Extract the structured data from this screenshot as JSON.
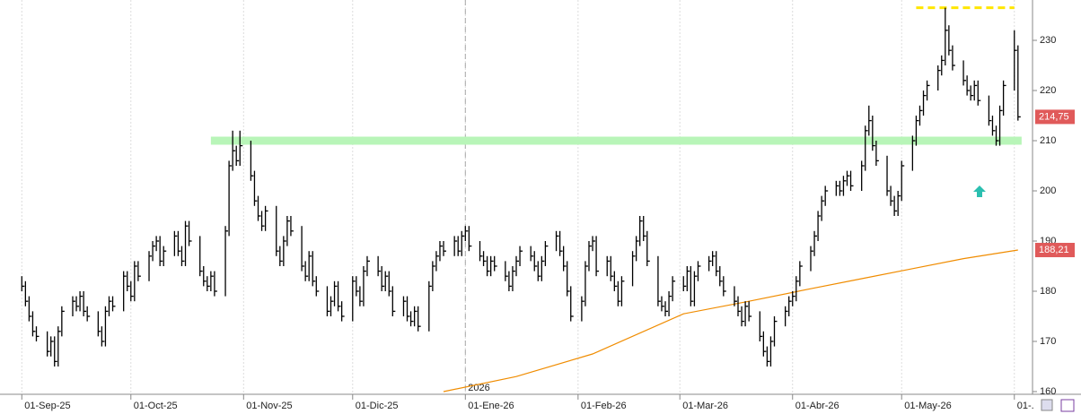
{
  "chart_data": {
    "type": "ohlc",
    "x": [
      "2025-09-01",
      "2025-09-02",
      "2025-09-03",
      "2025-09-04",
      "2025-09-05",
      "2025-09-08",
      "2025-09-09",
      "2025-09-10",
      "2025-09-11",
      "2025-09-12",
      "2025-09-15",
      "2025-09-16",
      "2025-09-17",
      "2025-09-18",
      "2025-09-19",
      "2025-09-22",
      "2025-09-23",
      "2025-09-24",
      "2025-09-25",
      "2025-09-26",
      "2025-09-29",
      "2025-09-30",
      "2025-10-01",
      "2025-10-02",
      "2025-10-03",
      "2025-10-06",
      "2025-10-07",
      "2025-10-08",
      "2025-10-09",
      "2025-10-10",
      "2025-10-13",
      "2025-10-14",
      "2025-10-15",
      "2025-10-16",
      "2025-10-17",
      "2025-10-20",
      "2025-10-21",
      "2025-10-22",
      "2025-10-23",
      "2025-10-24",
      "2025-10-27",
      "2025-10-28",
      "2025-10-29",
      "2025-10-30",
      "2025-10-31",
      "2025-11-03",
      "2025-11-04",
      "2025-11-05",
      "2025-11-06",
      "2025-11-07",
      "2025-11-10",
      "2025-11-11",
      "2025-11-12",
      "2025-11-13",
      "2025-11-14",
      "2025-11-17",
      "2025-11-18",
      "2025-11-19",
      "2025-11-20",
      "2025-11-21",
      "2025-11-24",
      "2025-11-25",
      "2025-11-26",
      "2025-11-27",
      "2025-11-28",
      "2025-12-01",
      "2025-12-02",
      "2025-12-03",
      "2025-12-04",
      "2025-12-05",
      "2025-12-08",
      "2025-12-09",
      "2025-12-10",
      "2025-12-11",
      "2025-12-12",
      "2025-12-15",
      "2025-12-16",
      "2025-12-17",
      "2025-12-18",
      "2025-12-19",
      "2025-12-22",
      "2025-12-23",
      "2025-12-24",
      "2025-12-25",
      "2025-12-26",
      "2025-12-29",
      "2025-12-30",
      "2025-12-31",
      "2026-01-01",
      "2026-01-02",
      "2026-01-05",
      "2026-01-06",
      "2026-01-07",
      "2026-01-08",
      "2026-01-09",
      "2026-01-12",
      "2026-01-13",
      "2026-01-14",
      "2026-01-15",
      "2026-01-16",
      "2026-01-19",
      "2026-01-20",
      "2026-01-21",
      "2026-01-22",
      "2026-01-23",
      "2026-01-26",
      "2026-01-27",
      "2026-01-28",
      "2026-01-29",
      "2026-01-30",
      "2026-02-02",
      "2026-02-03",
      "2026-02-04",
      "2026-02-05",
      "2026-02-06",
      "2026-02-09",
      "2026-02-10",
      "2026-02-11",
      "2026-02-12",
      "2026-02-13",
      "2026-02-16",
      "2026-02-17",
      "2026-02-18",
      "2026-02-19",
      "2026-02-20",
      "2026-02-23",
      "2026-02-24",
      "2026-02-25",
      "2026-02-26",
      "2026-02-27",
      "2026-03-02",
      "2026-03-03",
      "2026-03-04",
      "2026-03-05",
      "2026-03-06",
      "2026-03-09",
      "2026-03-10",
      "2026-03-11",
      "2026-03-12",
      "2026-03-13",
      "2026-03-16",
      "2026-03-17",
      "2026-03-18",
      "2026-03-19",
      "2026-03-20",
      "2026-03-23",
      "2026-03-24",
      "2026-03-25",
      "2026-03-26",
      "2026-03-27",
      "2026-03-30",
      "2026-03-31",
      "2026-04-01",
      "2026-04-02",
      "2026-04-03",
      "2026-04-06",
      "2026-04-07",
      "2026-04-08",
      "2026-04-09",
      "2026-04-10",
      "2026-04-13",
      "2026-04-14",
      "2026-04-15",
      "2026-04-16",
      "2026-04-17",
      "2026-04-20",
      "2026-04-21",
      "2026-04-22",
      "2026-04-23",
      "2026-04-24",
      "2026-04-27",
      "2026-04-28",
      "2026-04-29",
      "2026-04-30",
      "2026-05-01",
      "2026-05-04",
      "2026-05-05",
      "2026-05-06",
      "2026-05-07",
      "2026-05-08",
      "2026-05-11",
      "2026-05-12",
      "2026-05-13",
      "2026-05-14",
      "2026-05-15",
      "2026-05-18",
      "2026-05-19",
      "2026-05-20",
      "2026-05-21",
      "2026-05-22",
      "2026-05-25",
      "2026-05-26",
      "2026-05-27",
      "2026-05-28",
      "2026-05-29",
      "2026-06-01",
      "2026-06-02"
    ],
    "high": [
      183,
      182,
      179,
      176,
      173,
      172,
      171,
      171,
      173,
      177,
      179,
      179,
      180,
      180,
      177,
      176,
      173,
      177,
      179,
      179,
      184,
      184,
      182,
      186,
      186,
      188,
      190,
      191,
      191,
      189,
      192,
      192,
      189,
      194,
      194,
      191,
      185,
      183,
      184,
      184,
      193,
      206,
      212,
      209,
      212,
      210,
      204,
      199,
      196,
      197,
      197,
      189,
      191,
      195,
      195,
      193,
      186,
      188,
      188,
      183,
      181,
      179,
      182,
      182,
      178,
      183,
      183,
      181,
      185,
      187,
      187,
      185,
      184,
      184,
      181,
      179,
      179,
      176,
      177,
      177,
      182,
      186,
      188,
      190,
      190,
      191,
      191,
      192,
      193,
      193,
      190,
      188,
      187,
      187,
      187,
      186,
      184,
      185,
      187,
      189,
      189,
      188,
      186,
      187,
      190,
      192,
      192,
      189,
      186,
      181,
      179,
      186,
      190,
      191,
      191,
      187,
      187,
      184,
      182,
      183,
      188,
      191,
      195,
      195,
      192,
      187,
      179,
      178,
      180,
      183,
      183,
      185,
      185,
      184,
      186,
      187,
      188,
      188,
      185,
      183,
      181,
      179,
      177,
      178,
      178,
      176,
      172,
      169,
      171,
      175,
      177,
      179,
      180,
      183,
      186,
      189,
      192,
      196,
      199,
      201,
      202,
      202,
      203,
      204,
      204,
      206,
      213,
      217,
      215,
      210,
      207,
      201,
      199,
      200,
      206,
      211,
      215,
      217,
      220,
      222,
      225,
      227,
      236.5,
      233,
      229,
      226,
      223,
      221,
      222,
      222,
      219,
      215,
      213,
      217,
      222,
      232,
      229
    ],
    "low": [
      180,
      177,
      174,
      171,
      170,
      167,
      167,
      165,
      165,
      171,
      175,
      176,
      176,
      175,
      174,
      171,
      169,
      169,
      175,
      176,
      176,
      180,
      178,
      178,
      182,
      182,
      186,
      188,
      185,
      185,
      187,
      187,
      185,
      185,
      189,
      183,
      181,
      180,
      180,
      179,
      179,
      191,
      204,
      205,
      205,
      202,
      197,
      194,
      192,
      192,
      187,
      185,
      185,
      189,
      191,
      184,
      182,
      182,
      181,
      179,
      175,
      175,
      177,
      176,
      174,
      174,
      179,
      177,
      177,
      183,
      183,
      180,
      180,
      179,
      175,
      175,
      174,
      173,
      173,
      172,
      172,
      180,
      184,
      186,
      187,
      187,
      187,
      187,
      190,
      188,
      186,
      185,
      183,
      183,
      184,
      182,
      180,
      180,
      183,
      185,
      186,
      184,
      182,
      182,
      185,
      188,
      187,
      184,
      179,
      174,
      174,
      177,
      184,
      188,
      183,
      183,
      182,
      180,
      177,
      177,
      181,
      186,
      189,
      190,
      185,
      177,
      176,
      175,
      175,
      178,
      180,
      180,
      177,
      177,
      182,
      184,
      185,
      183,
      181,
      179,
      177,
      175,
      173,
      173,
      174,
      170,
      167,
      165,
      165,
      169,
      173,
      175,
      177,
      178,
      181,
      184,
      187,
      190,
      194,
      197,
      199,
      199,
      199,
      201,
      200,
      200,
      204,
      211,
      208,
      205,
      199,
      197,
      195,
      195,
      198,
      204,
      209,
      213,
      215,
      218,
      220,
      223,
      225,
      227,
      224,
      221,
      219,
      218,
      218,
      217,
      213,
      211,
      209,
      209,
      215,
      220,
      214
    ],
    "close": [
      181,
      178,
      175,
      172,
      171,
      168,
      170,
      166,
      172,
      176,
      178,
      177,
      179,
      176,
      175,
      172,
      170,
      176,
      178,
      177,
      183,
      181,
      179,
      185,
      183,
      187,
      189,
      190,
      186,
      188,
      191,
      188,
      186,
      193,
      190,
      184,
      182,
      181,
      183,
      180,
      192,
      205,
      208,
      206,
      209,
      203,
      198,
      195,
      193,
      196,
      188,
      186,
      190,
      194,
      192,
      185,
      183,
      187,
      182,
      180,
      176,
      178,
      181,
      177,
      175,
      182,
      180,
      178,
      184,
      186,
      184,
      181,
      183,
      180,
      176,
      178,
      175,
      174,
      176,
      173,
      181,
      185,
      187,
      189,
      188,
      190,
      188,
      191,
      192,
      189,
      187,
      186,
      184,
      186,
      185,
      183,
      181,
      184,
      186,
      188,
      187,
      185,
      183,
      186,
      189,
      191,
      188,
      185,
      180,
      175,
      178,
      185,
      189,
      190,
      184,
      186,
      183,
      181,
      178,
      182,
      187,
      190,
      194,
      191,
      186,
      178,
      177,
      176,
      179,
      182,
      181,
      184,
      178,
      183,
      185,
      186,
      187,
      184,
      182,
      180,
      178,
      176,
      174,
      177,
      175,
      171,
      168,
      166,
      170,
      174,
      176,
      178,
      179,
      182,
      185,
      188,
      191,
      195,
      198,
      200,
      201,
      200,
      202,
      203,
      201,
      205,
      212,
      214,
      209,
      206,
      200,
      198,
      196,
      199,
      205,
      210,
      214,
      216,
      219,
      221,
      224,
      226,
      232,
      228,
      225,
      222,
      220,
      219,
      221,
      218,
      214,
      212,
      210,
      216,
      221,
      228,
      214.75
    ],
    "last_label": "214,75",
    "color": "#000000",
    "xlim": [
      "2025-08-26",
      "2026-06-06"
    ],
    "xticks": [
      {
        "value": "2025-09-01",
        "label": "01-Sep-25"
      },
      {
        "value": "2025-10-01",
        "label": "01-Oct-25"
      },
      {
        "value": "2025-11-01",
        "label": "01-Nov-25"
      },
      {
        "value": "2025-12-01",
        "label": "01-Dic-25"
      },
      {
        "value": "2026-01-01",
        "label": "01-Ene-26"
      },
      {
        "value": "2026-02-01",
        "label": "01-Feb-26"
      },
      {
        "value": "2026-03-01",
        "label": "01-Mar-26"
      },
      {
        "value": "2026-04-01",
        "label": "01-Abr-26"
      },
      {
        "value": "2026-05-01",
        "label": "01-May-26"
      },
      {
        "value": "2026-06-01",
        "label": "01-."
      }
    ],
    "ylim": [
      159.46,
      238.04
    ],
    "yticks": [
      160,
      170,
      180,
      190,
      200,
      210,
      220,
      230
    ],
    "ma": {
      "color": "#f08c00",
      "x": [
        "2025-12-26",
        "2026-01-15",
        "2026-02-05",
        "2026-03-02",
        "2026-03-20",
        "2026-04-06",
        "2026-04-20",
        "2026-05-04",
        "2026-05-18",
        "2026-06-02"
      ],
      "values": [
        160,
        163,
        167.5,
        175.5,
        178,
        180.5,
        182.5,
        184.5,
        186.5,
        188.21
      ],
      "last_label": "188,21"
    },
    "hlines": [
      {
        "value": 210,
        "x": [
          "2025-10-23",
          "2026-06-03"
        ],
        "color": "#b8f5b8",
        "dashed": false
      },
      {
        "value": 236.5,
        "x": [
          "2026-05-05",
          "2026-06-01"
        ],
        "color": "#ffe600",
        "dashed": true
      }
    ],
    "year_marker": {
      "x": "2026-01-01",
      "label": "2026"
    },
    "label_color": "#e05a5a"
  }
}
